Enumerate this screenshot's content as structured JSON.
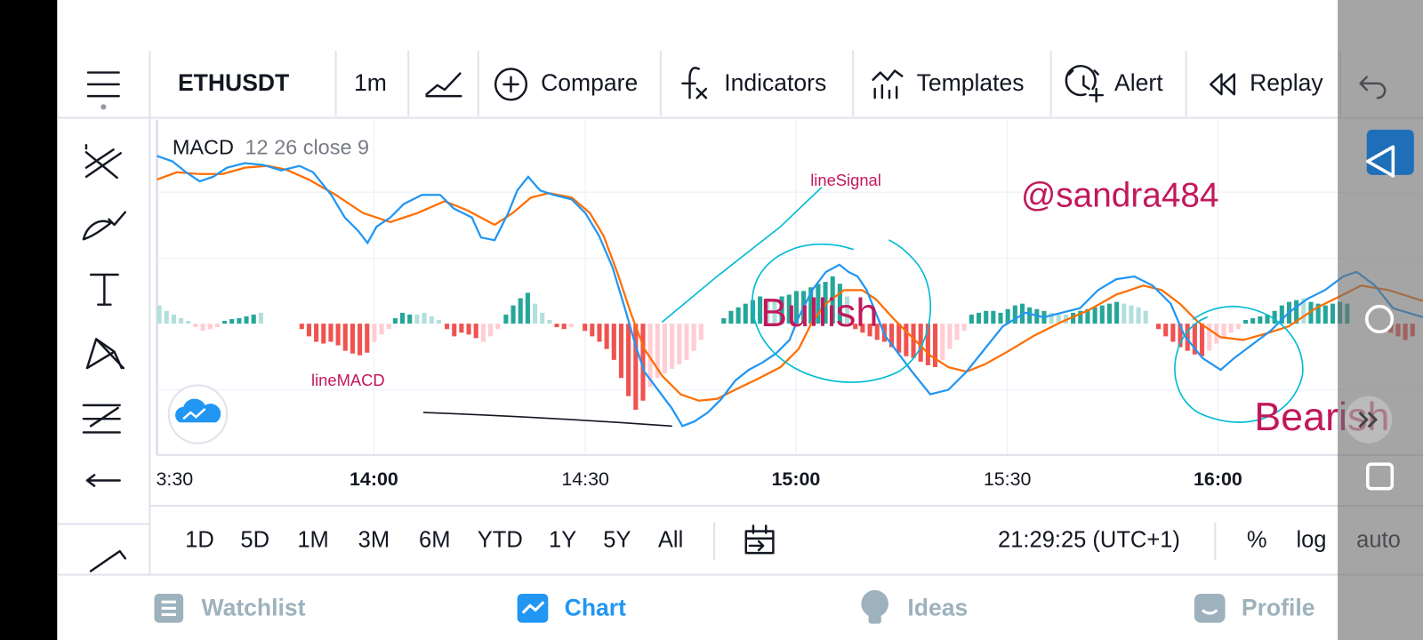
{
  "toolbar": {
    "symbol": "ETHUSDT",
    "interval": "1m",
    "buttons": [
      "Compare",
      "Indicators",
      "Templates",
      "Alert",
      "Replay"
    ]
  },
  "legend": {
    "name": "MACD",
    "params": "12 26 close 9"
  },
  "annotations": {
    "line_signal": "lineSignal",
    "watermark": "@sandra484",
    "bullish": "Bullish",
    "line_macd": "lineMACD",
    "bearish": "Bearish"
  },
  "time_axis": [
    "3:30",
    "14:00",
    "14:30",
    "15:00",
    "15:30",
    "16:00"
  ],
  "ranges": [
    "1D",
    "5D",
    "1M",
    "3M",
    "6M",
    "YTD",
    "1Y",
    "5Y",
    "All"
  ],
  "clock": "21:29:25 (UTC+1)",
  "scale_options": [
    "%",
    "log",
    "auto"
  ],
  "nav": [
    "Watchlist",
    "Chart",
    "Ideas",
    "Profile"
  ]
}
